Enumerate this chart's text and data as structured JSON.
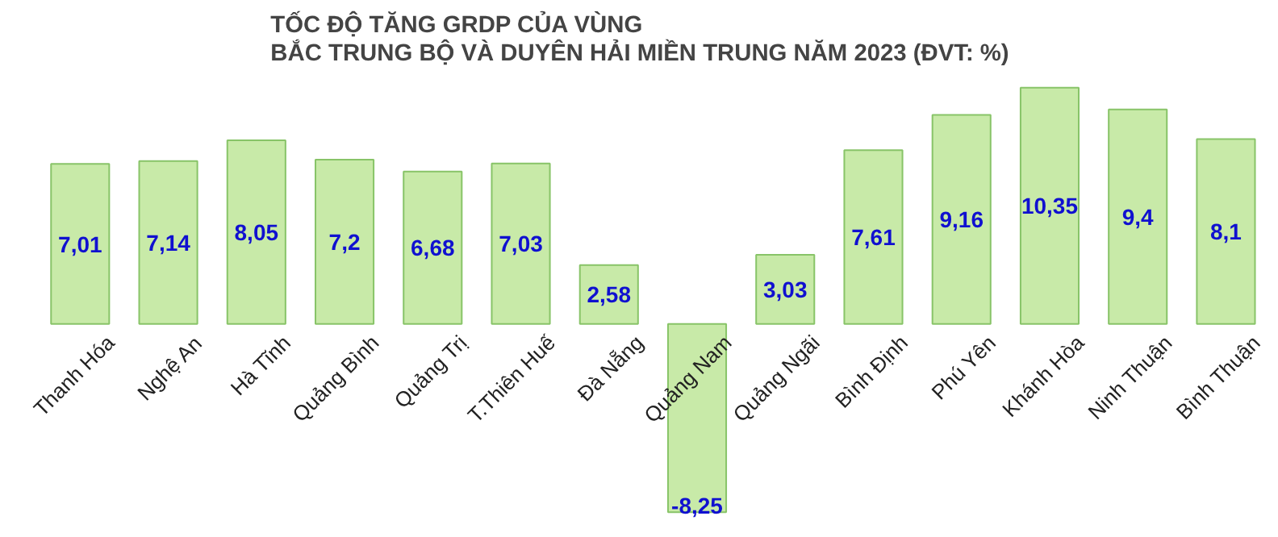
{
  "chart_data": {
    "type": "bar",
    "title": "TỐC ĐỘ TĂNG GRDP CỦA VÙNG\nBẮC TRUNG BỘ VÀ DUYÊN HẢI MIỀN TRUNG NĂM 2023 (ĐVT: %)",
    "categories": [
      "Thanh Hóa",
      "Nghệ An",
      "Hà Tĩnh",
      "Quảng Bình",
      "Quảng Trị",
      "T.Thiên Huế",
      "Đà Nẵng",
      "Quảng Nam",
      "Quảng Ngãi",
      "Bình Định",
      "Phú Yên",
      "Khánh Hòa",
      "Ninh Thuận",
      "Bình Thuận"
    ],
    "values": [
      7.01,
      7.14,
      8.05,
      7.2,
      6.68,
      7.03,
      2.58,
      -8.25,
      3.03,
      7.61,
      9.16,
      10.35,
      9.4,
      8.1
    ],
    "value_labels": [
      "7,01",
      "7,14",
      "8,05",
      "7,2",
      "6,68",
      "7,03",
      "2,58",
      "-8,25",
      "3,03",
      "7,61",
      "9,16",
      "10,35",
      "9,4",
      "8,1"
    ],
    "color": "#c8eaa8",
    "grid": false
  }
}
